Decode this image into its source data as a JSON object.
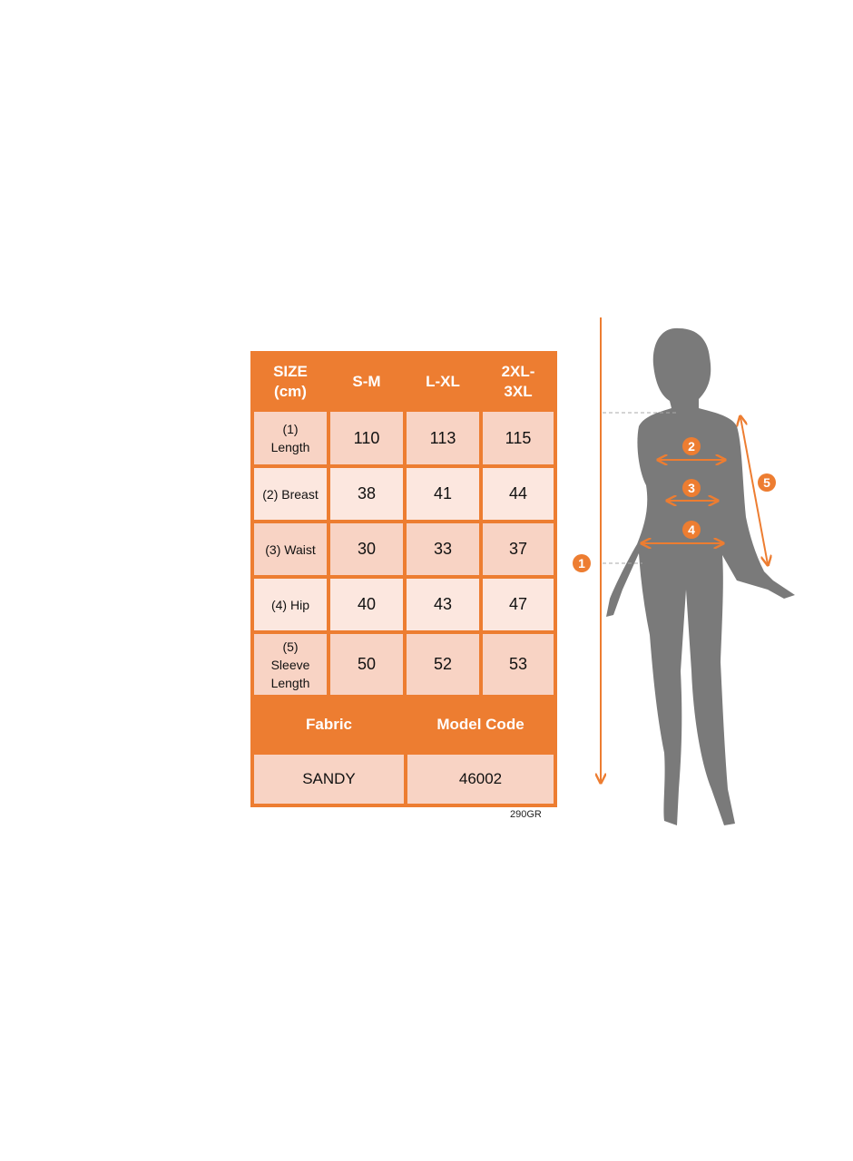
{
  "size_table": {
    "header": [
      "SIZE (cm)",
      "S-M",
      "L-XL",
      "2XL-3XL"
    ],
    "rows": [
      {
        "label": "(1) Length",
        "values": [
          "110",
          "113",
          "115"
        ]
      },
      {
        "label": "(2) Breast",
        "values": [
          "38",
          "41",
          "44"
        ]
      },
      {
        "label": "(3) Waist",
        "values": [
          "30",
          "33",
          "37"
        ]
      },
      {
        "label": "(4) Hip",
        "values": [
          "40",
          "43",
          "47"
        ]
      },
      {
        "label": "(5) Sleeve Length",
        "values": [
          "50",
          "52",
          "53"
        ]
      }
    ],
    "info_header": [
      "Fabric",
      "Model Code"
    ],
    "info_values": [
      "SANDY",
      "46002"
    ]
  },
  "weight_note": "290GR",
  "figure": {
    "markers": [
      "1",
      "2",
      "3",
      "4",
      "5"
    ],
    "accent_color": "#ED7D31",
    "silhouette_color": "#7A7A7A"
  }
}
